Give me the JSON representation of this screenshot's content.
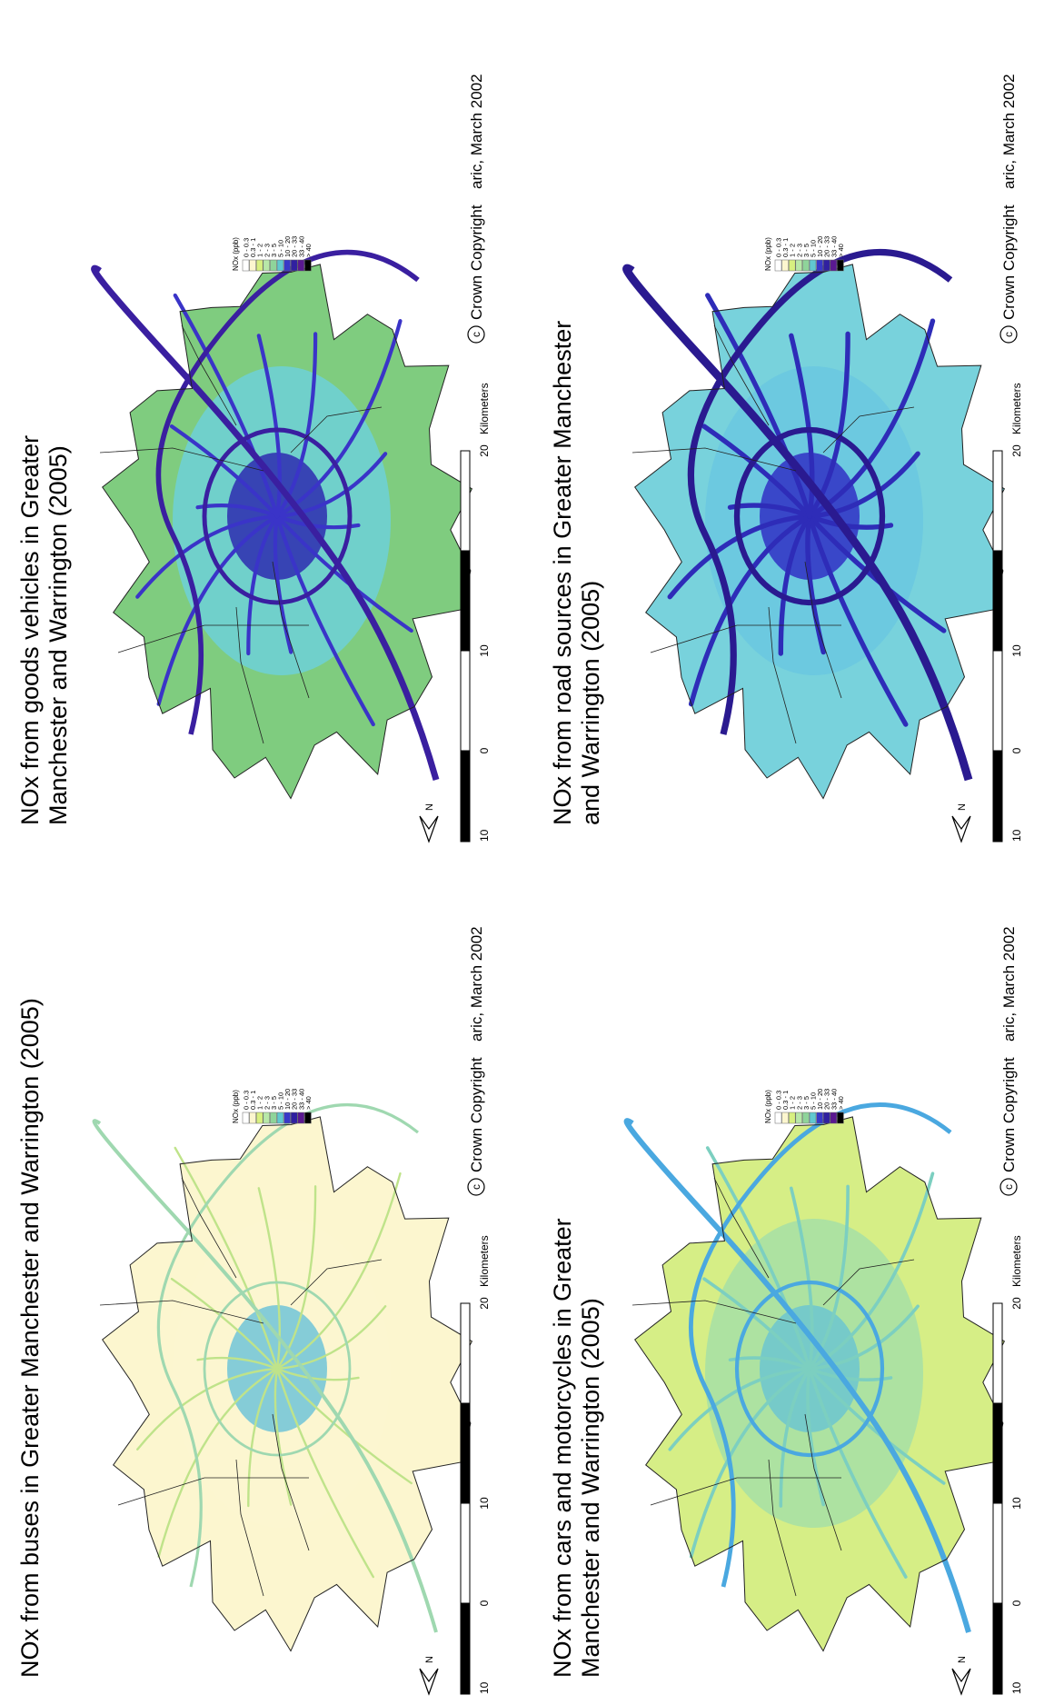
{
  "panels": [
    {
      "title": "NOx from buses in Greater Manchester and Warrington (2005)"
    },
    {
      "title": "NOx from goods vehicles in Greater Manchester and Warrington (2005)"
    },
    {
      "title": "NOx from cars and motorcycles in Greater Manchester and Warrington (2005)"
    },
    {
      "title": "NOx from road sources in Greater Manchester and Warrington (2005)"
    }
  ],
  "legend": {
    "title": "NOx (ppb)",
    "items": [
      "0 - 0.3",
      "0.3 - 1",
      "1 - 2",
      "2 - 3",
      "3 - 5",
      "5 - 10",
      "10 - 20",
      "20 - 33",
      "33 - 40",
      "> 40"
    ]
  },
  "scale": {
    "labels": [
      "10",
      "0",
      "10",
      "20"
    ],
    "unit": "Kilometers"
  },
  "north": "N",
  "copyright": {
    "symbol": "c",
    "text": "Crown Copyright",
    "credit": "aric, March 2002"
  }
}
